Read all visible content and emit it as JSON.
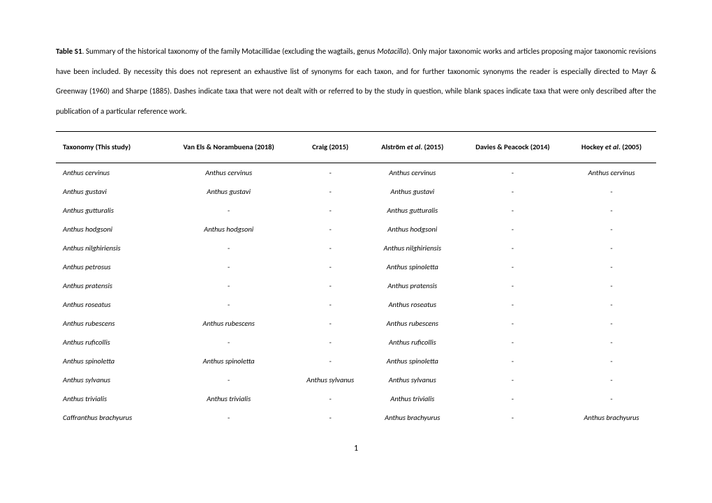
{
  "caption": {
    "label": "Table S1",
    "text_before_italic": ". Summary of the historical taxonomy of the family Motacillidae (excluding the wagtails, genus ",
    "italic_word": "Motacilla",
    "text_after_italic": "). Only major taxonomic works and articles proposing major taxonomic revisions have been included. By necessity this does not represent an exhaustive list of synonyms for each taxon, and for further taxonomic synonyms the reader is especially directed to Mayr & Greenway (1960) and Sharpe (1885). Dashes indicate taxa that were not dealt with or referred to by the study in question, while blank spaces indicate taxa that were only described after the publication of a particular reference work."
  },
  "columns": [
    {
      "plain": "Taxonomy (This study)"
    },
    {
      "plain": "Van Els & Norambuena (2018)"
    },
    {
      "plain": "Craig (2015)"
    },
    {
      "before": "Alström ",
      "etal": "et al",
      "after": ". (2015)"
    },
    {
      "plain": "Davies & Peacock (2014)"
    },
    {
      "before": "Hockey ",
      "etal": "et al",
      "after": ". (2005)"
    }
  ],
  "rows": [
    [
      "Anthus cervinus",
      "Anthus cervinus",
      "-",
      "Anthus cervinus",
      "-",
      "Anthus cervinus"
    ],
    [
      "Anthus gustavi",
      "Anthus gustavi",
      "-",
      "Anthus gustavi",
      "-",
      "-"
    ],
    [
      "Anthus gutturalis",
      "-",
      "-",
      "Anthus gutturalis",
      "-",
      "-"
    ],
    [
      "Anthus hodgsoni",
      "Anthus hodgsoni",
      "-",
      "Anthus hodgsoni",
      "-",
      "-"
    ],
    [
      "Anthus nilghiriensis",
      "-",
      "-",
      "Anthus nilghiriensis",
      "-",
      "-"
    ],
    [
      "Anthus petrosus",
      "-",
      "-",
      "Anthus spinoletta",
      "-",
      "-"
    ],
    [
      "Anthus pratensis",
      "-",
      "-",
      "Anthus pratensis",
      "-",
      "-"
    ],
    [
      "Anthus roseatus",
      "-",
      "-",
      "Anthus roseatus",
      "-",
      "-"
    ],
    [
      "Anthus rubescens",
      "Anthus rubescens",
      "-",
      "Anthus rubescens",
      "-",
      "-"
    ],
    [
      "Anthus ruficollis",
      "-",
      "-",
      "Anthus ruficollis",
      "-",
      "-"
    ],
    [
      "Anthus spinoletta",
      "Anthus spinoletta",
      "-",
      "Anthus spinoletta",
      "-",
      "-"
    ],
    [
      "Anthus sylvanus",
      "-",
      "Anthus sylvanus",
      "Anthus sylvanus",
      "-",
      "-"
    ],
    [
      "Anthus trivialis",
      "Anthus trivialis",
      "-",
      "Anthus trivialis",
      "-",
      "-"
    ],
    [
      "Caffranthus brachyurus",
      "-",
      "-",
      "Anthus brachyurus",
      "-",
      "Anthus brachyurus"
    ]
  ],
  "page_number": "1"
}
